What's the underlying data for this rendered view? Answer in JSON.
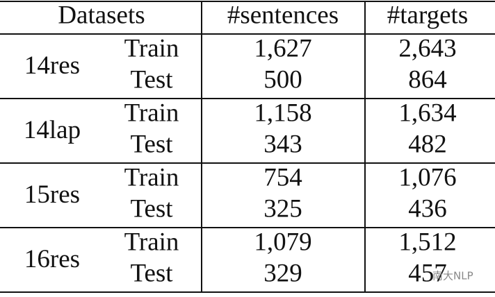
{
  "table": {
    "header": [
      "Datasets",
      "#sentences",
      "#targets"
    ],
    "groups": [
      {
        "name": "14res",
        "rows": [
          [
            "Train",
            "1,627",
            "2,643"
          ],
          [
            "Test",
            "500",
            "864"
          ]
        ]
      },
      {
        "name": "14lap",
        "rows": [
          [
            "Train",
            "1,158",
            "1,634"
          ],
          [
            "Test",
            "343",
            "482"
          ]
        ]
      },
      {
        "name": "15res",
        "rows": [
          [
            "Train",
            "754",
            "1,076"
          ],
          [
            "Test",
            "325",
            "436"
          ]
        ]
      },
      {
        "name": "16res",
        "rows": [
          [
            "Train",
            "1,079",
            "1,512"
          ],
          [
            "Test",
            "329",
            "457"
          ]
        ]
      }
    ]
  },
  "watermark": "南大NLP"
}
